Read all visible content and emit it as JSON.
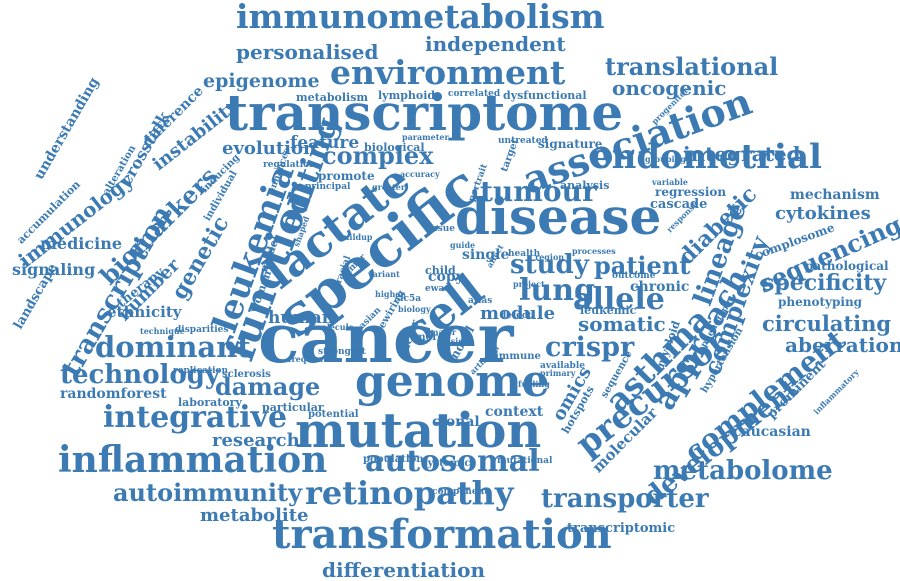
{
  "colors": {
    "word": "#3b7ab3",
    "background": "#ffffff"
  },
  "words": [
    "cancer",
    "specific",
    "disease",
    "transcriptome",
    "mutation",
    "genome",
    "lactate",
    "cell",
    "transformation",
    "inflammation",
    "association",
    "immunometabolism",
    "environment",
    "endometrial",
    "function",
    "retinopathy",
    "integrative",
    "precursor",
    "autosomal",
    "asthma",
    "transporter",
    "leukemia",
    "lung",
    "allele",
    "dominant",
    "editing",
    "tumour",
    "approach",
    "complexity",
    "development",
    "complement",
    "metabolome",
    "technology",
    "study",
    "patient",
    "crispr",
    "autoimmunity",
    "transcription",
    "damage",
    "lineage",
    "complex",
    "translational",
    "personalised",
    "independent",
    "oncogenic",
    "epigenome",
    "genetic",
    "biomarkers",
    "immunology",
    "medicine",
    "sequencing",
    "specificity",
    "circulating",
    "aberration",
    "differentiation",
    "metabolite",
    "diabetic",
    "cytokines",
    "integrated",
    "somatic",
    "research",
    "number",
    "human",
    "module",
    "omics",
    "molecular",
    "evolution",
    "feature",
    "instability",
    "crosstalk",
    "difference",
    "signaling",
    "landscape",
    "therapy",
    "ethnicity",
    "mechanism",
    "cascade",
    "regression",
    "pathological",
    "phenotyping",
    "caucasian",
    "prominent",
    "context",
    "clonal",
    "single",
    "copy",
    "randomforest",
    "laboratory",
    "particular",
    "potential",
    "hotspots",
    "chronic",
    "leukemic",
    "signature",
    "analysis",
    "complosome",
    "understanding",
    "accumulation",
    "alteration",
    "metabolism",
    "lymphoid",
    "correlated",
    "dysfunctional",
    "biological",
    "promote",
    "regulation",
    "enhances",
    "principal",
    "inducing",
    "individual",
    "model",
    "woman",
    "sclerosis",
    "replication",
    "disparities",
    "technique",
    "strongest",
    "frequent",
    "rewiring",
    "factor",
    "novel",
    "immune",
    "arthritis",
    "population",
    "systemic",
    "mutational",
    "component",
    "transcriptomic",
    "hypertension",
    "inflammatory",
    "response",
    "grouping",
    "variable",
    "progenitor",
    "outcome",
    "processes",
    "variant",
    "child",
    "racial",
    "detect",
    "primary",
    "atlas",
    "untreated",
    "parameter",
    "accuracy",
    "greater",
    "buildup",
    "shaped",
    "target",
    "portrait",
    "guide",
    "health",
    "region",
    "project",
    "affect",
    "tissue",
    "asian",
    "major",
    "basis",
    "more",
    "available",
    "slc5a",
    "ewas",
    "molecule",
    "tumor",
    "higher",
    "biology",
    "sequence",
    "phenotype",
    "myeloid",
    "fueling"
  ]
}
